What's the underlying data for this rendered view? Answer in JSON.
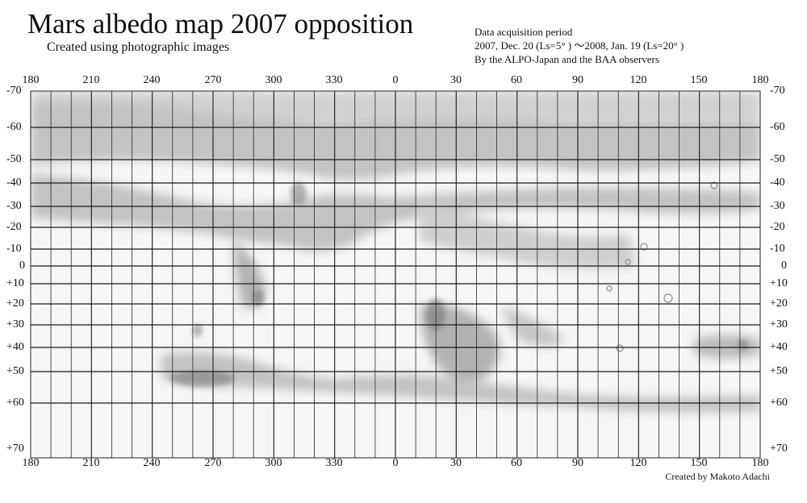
{
  "header": {
    "title": "Mars albedo map 2007 opposition",
    "subtitle": "Created using photographic images",
    "info_lines": [
      "Data acquisition period",
      "2007, Dec. 20 (Ls=5° ) ～2008, Jan. 19 (Ls=20° )",
      "By the ALPO-Japan and the BAA observers"
    ]
  },
  "credit": "Created by Makoto Adachi",
  "longitude_labels": [
    "180",
    "210",
    "240",
    "270",
    "300",
    "330",
    "0",
    "30",
    "60",
    "90",
    "120",
    "150",
    "180"
  ],
  "latitude_labels": [
    "-70",
    "-60",
    "-50",
    "-40",
    "-30",
    "-20",
    "-10",
    "0",
    "+10",
    "+20",
    "+30",
    "+40",
    "+50",
    "+60",
    "+70"
  ],
  "colors": {
    "paper": "#f7f7f7",
    "grid": "#222222",
    "albedo_dark": "#555555"
  }
}
